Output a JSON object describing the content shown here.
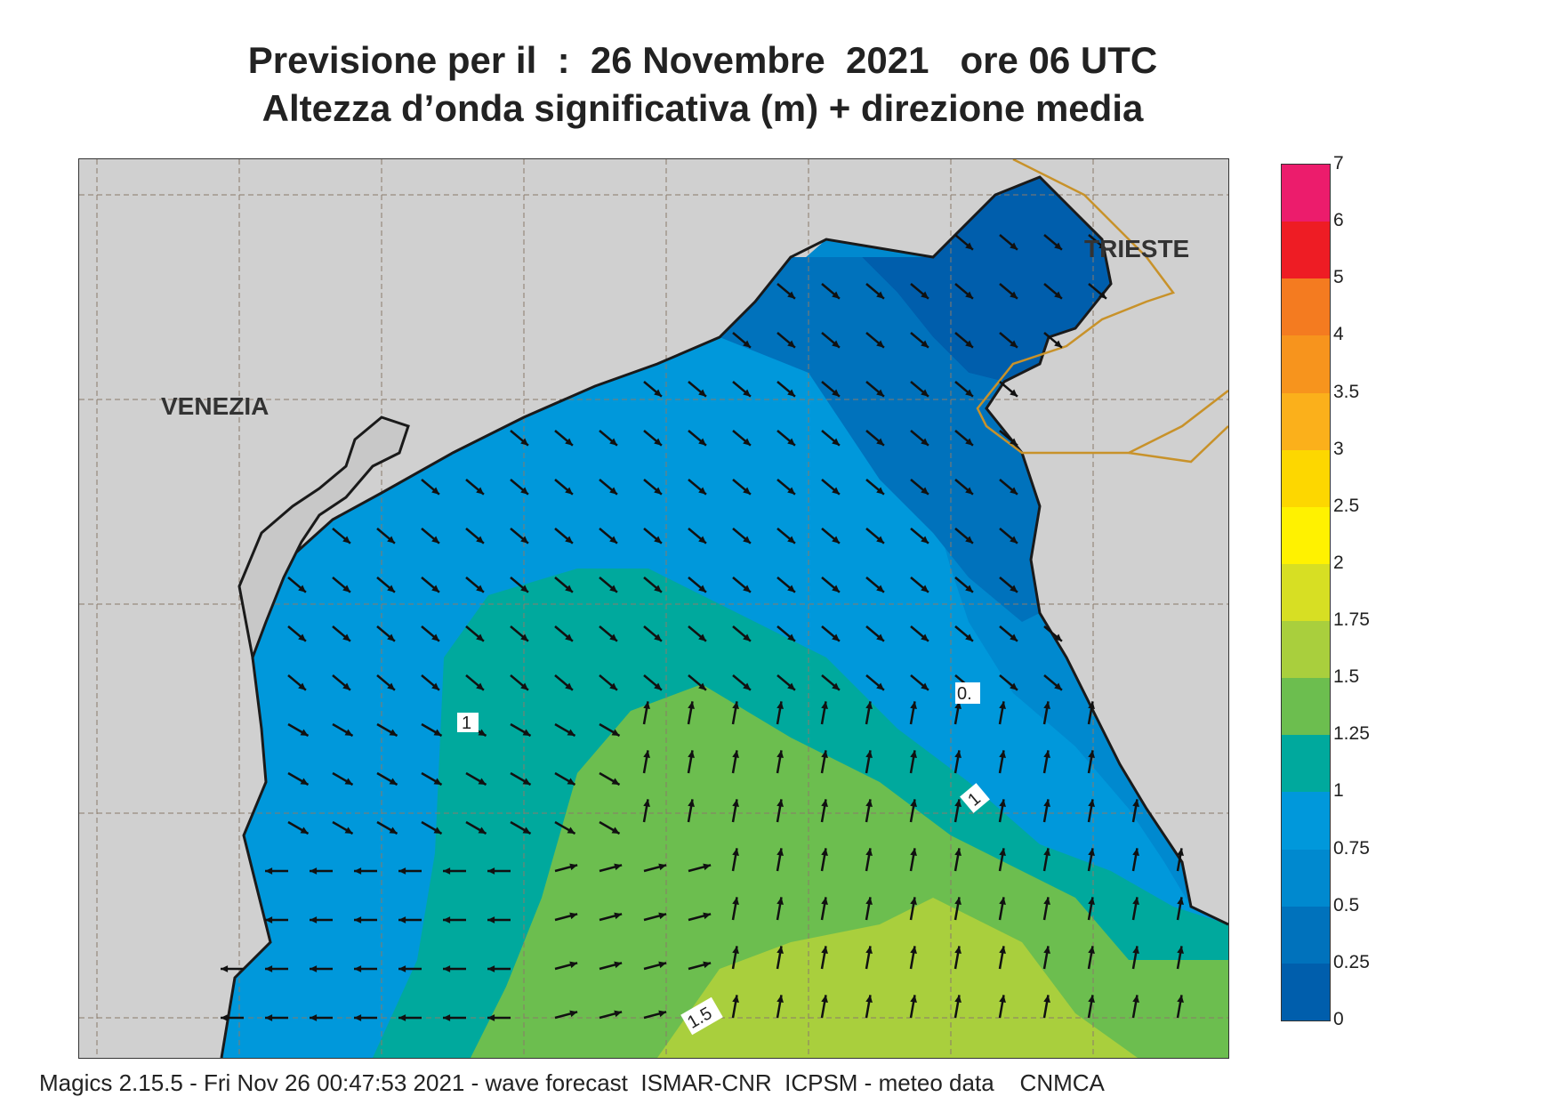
{
  "title": {
    "line1": "Previsione per il  :  26 Novembre  2021   ore 06 UTC",
    "line2": "Altezza d’onda significativa (m) + direzione media"
  },
  "map": {
    "cities": [
      {
        "name": "VENEZIA",
        "id": "venezia"
      },
      {
        "name": "TRIESTE",
        "id": "trieste"
      }
    ],
    "land_color": "#d0d0d0",
    "contour_labels": [
      "1",
      "0.",
      "1",
      "1.5"
    ]
  },
  "colorbar": {
    "levels": [
      "7",
      "6",
      "5",
      "4",
      "3.5",
      "3",
      "2.5",
      "2",
      "1.75",
      "1.5",
      "1.25",
      "1",
      "0.75",
      "0.5",
      "0.25",
      "0"
    ],
    "colors": [
      "#ec1c6c",
      "#ee1c24",
      "#f47b20",
      "#f7941d",
      "#fbb01b",
      "#fdd700",
      "#fff200",
      "#d7df23",
      "#a9cf3d",
      "#6cbe4f",
      "#00a99d",
      "#0098db",
      "#0089cf",
      "#0072bc",
      "#005eac"
    ]
  },
  "footer": "Magics 2.15.5 - Fri Nov 26 00:47:53 2021 - wave forecast  ISMAR-CNR  ICPSM - meteo data    CNMCA"
}
